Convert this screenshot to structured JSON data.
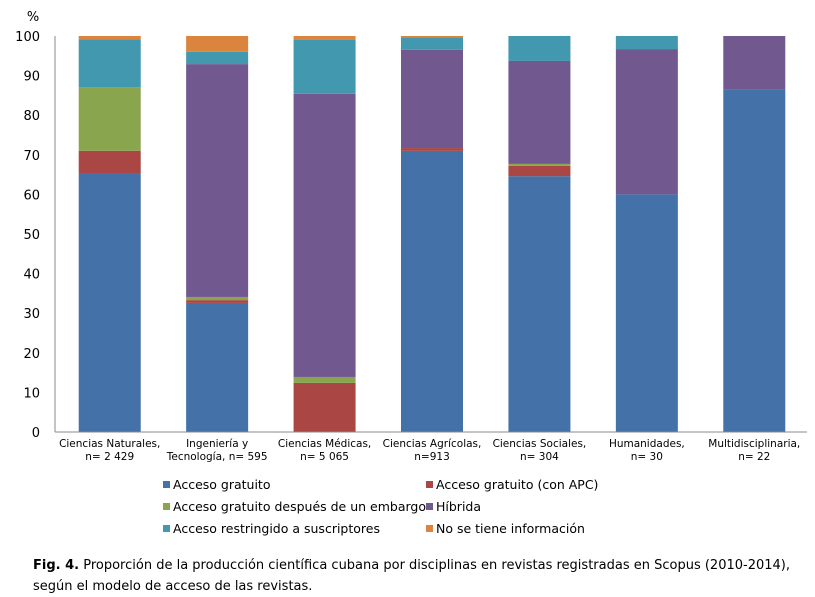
{
  "chart_data": {
    "type": "bar",
    "stacked": true,
    "title": "",
    "ylabel": "%",
    "xlabel": "",
    "ylim": [
      0,
      100
    ],
    "yticks": [
      0,
      10,
      20,
      30,
      40,
      50,
      60,
      70,
      80,
      90,
      100
    ],
    "grid": false,
    "legend_position": "bottom",
    "categories": [
      [
        "Ciencias Naturales,",
        "n= 2 429"
      ],
      [
        "Ingeniería y",
        "Tecnología, n= 595"
      ],
      [
        "Ciencias Médicas,",
        "n= 5 065"
      ],
      [
        "Ciencias Agrícolas,",
        "n=913"
      ],
      [
        "Ciencias Sociales,",
        "n= 304"
      ],
      [
        "Humanidades,",
        "n= 30"
      ],
      [
        "Multidisciplinaria,",
        "n= 22"
      ]
    ],
    "series": [
      {
        "name": "Acceso gratuito",
        "color": "#4472a8",
        "values": [
          65.4,
          32.6,
          0,
          71.0,
          64.6,
          60.0,
          86.4
        ]
      },
      {
        "name": "Acceso gratuito (con APC)",
        "color": "#aa4643",
        "values": [
          5.6,
          0.7,
          12.4,
          0.7,
          2.6,
          0,
          0
        ]
      },
      {
        "name": "Acceso gratuito después de un embargo",
        "color": "#89a54e",
        "values": [
          16.1,
          0.8,
          1.5,
          0,
          0.5,
          0,
          0
        ]
      },
      {
        "name": "Híbrida",
        "color": "#71588f",
        "values": [
          0,
          58.8,
          71.5,
          24.8,
          26.0,
          36.7,
          13.6
        ]
      },
      {
        "name": "Acceso restringido a suscriptores",
        "color": "#4198af",
        "values": [
          12.1,
          3.1,
          13.6,
          3.2,
          6.3,
          3.3,
          0
        ]
      },
      {
        "name": "No se tiene información",
        "color": "#db843d",
        "values": [
          0.8,
          4.0,
          1.0,
          0.3,
          0,
          0,
          0
        ]
      }
    ]
  },
  "caption": {
    "label": "Fig. 4.",
    "text": " Proporción de la producción científica cubana por disciplinas en revistas registradas en Scopus (2010-2014), según el modelo de acceso de las revistas."
  }
}
